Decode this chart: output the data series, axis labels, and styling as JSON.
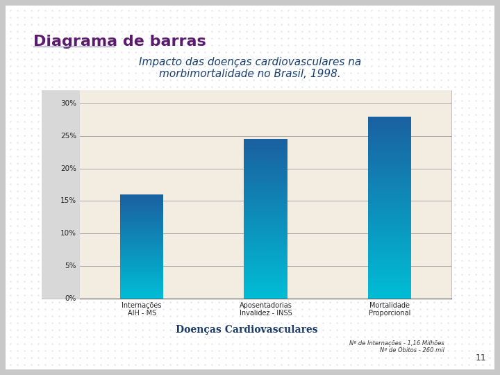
{
  "title": "Diagrama de barras",
  "subtitle": "Impacto das doenças cardiovasculares na\nmorbimortalidade no Brasil, 1998.",
  "categories": [
    "Internações\nAIH - MS",
    "Aposentadorias\nInvalidez - INSS",
    "Mortalidade\nProporcional"
  ],
  "values": [
    16,
    24.5,
    28
  ],
  "xlabel": "Doenças Cardiovasculares",
  "footnote": "Nº de Internações - 1,16 Milhões\nNº de Óbitos - 260 mil",
  "yticks": [
    0,
    5,
    10,
    15,
    20,
    25,
    30
  ],
  "ylim": [
    0,
    32
  ],
  "bar_color_top": "#1a5fa0",
  "bar_color_bottom": "#00bcd4",
  "title_color": "#5c1a6e",
  "subtitle_color": "#1a3f6f",
  "xlabel_color": "#1a3a6b",
  "bg_slide": "#c8c8c8",
  "bg_chart": "#f2ede0",
  "bg_left_panel": "#d8d8d8",
  "bg_white": "#ffffff",
  "page_number": "11"
}
